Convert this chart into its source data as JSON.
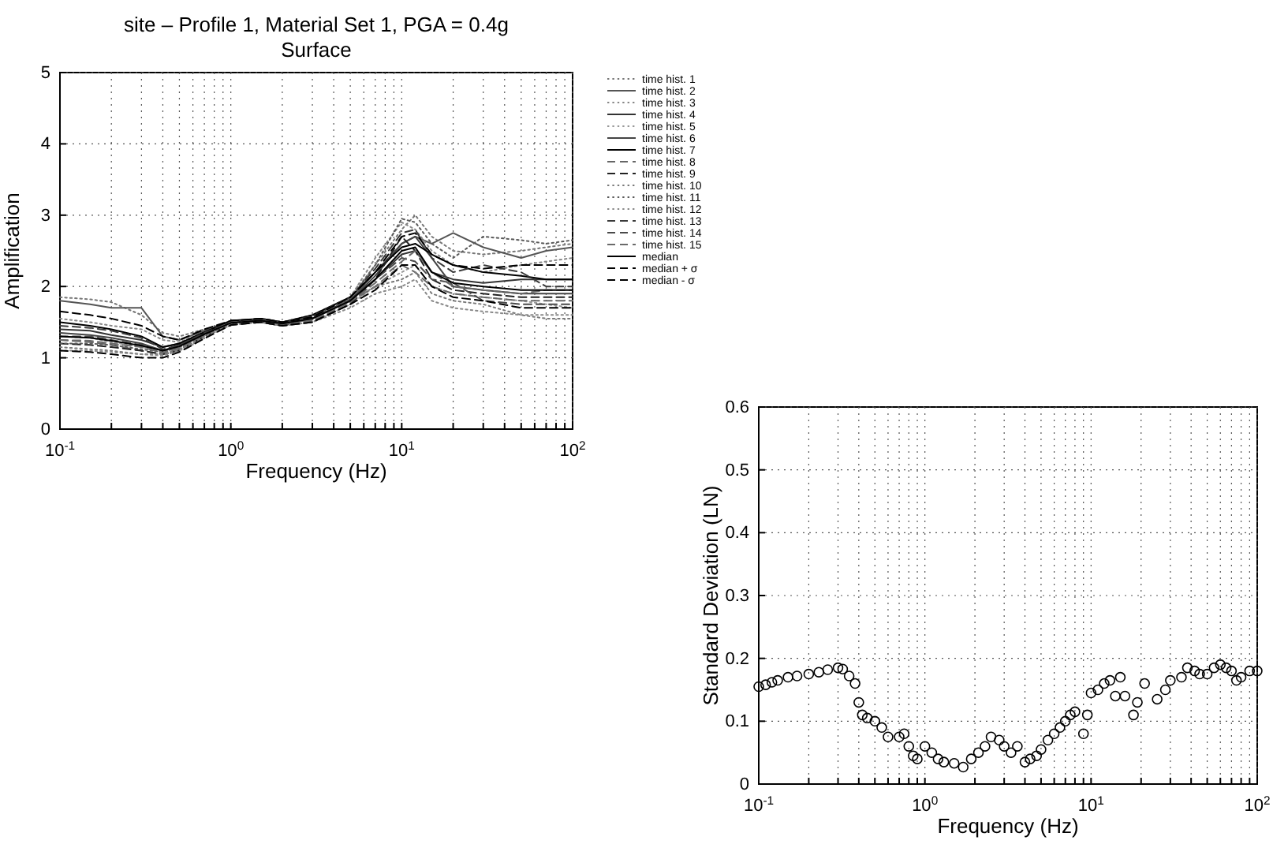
{
  "chart_data": [
    {
      "type": "line",
      "title": "site – Profile 1, Material Set 1, PGA = 0.4g",
      "subtitle": "Surface",
      "xlabel": "Frequency (Hz)",
      "ylabel": "Amplification",
      "x": [
        0.1,
        0.15,
        0.2,
        0.3,
        0.4,
        0.5,
        0.7,
        1,
        1.5,
        2,
        3,
        5,
        7,
        10,
        12,
        15,
        20,
        30,
        50,
        70,
        100
      ],
      "xlim": [
        0.1,
        100
      ],
      "xticks": [
        {
          "value": 0.1,
          "label": "10$^{-1}$"
        },
        {
          "value": 0.2,
          "label": null
        },
        {
          "value": 0.3,
          "label": null
        },
        {
          "value": 0.4,
          "label": null
        },
        {
          "value": 0.5,
          "label": null
        },
        {
          "value": 0.6,
          "label": null
        },
        {
          "value": 0.7,
          "label": null
        },
        {
          "value": 0.8,
          "label": null
        },
        {
          "value": 0.9,
          "label": null
        },
        {
          "value": 1,
          "label": "10$^{0}$"
        },
        {
          "value": 2,
          "label": null
        },
        {
          "value": 3,
          "label": null
        },
        {
          "value": 4,
          "label": null
        },
        {
          "value": 5,
          "label": null
        },
        {
          "value": 6,
          "label": null
        },
        {
          "value": 7,
          "label": null
        },
        {
          "value": 8,
          "label": null
        },
        {
          "value": 9,
          "label": null
        },
        {
          "value": 10,
          "label": "10$^{1}$"
        },
        {
          "value": 20,
          "label": null
        },
        {
          "value": 30,
          "label": null
        },
        {
          "value": 40,
          "label": null
        },
        {
          "value": 50,
          "label": null
        },
        {
          "value": 60,
          "label": null
        },
        {
          "value": 70,
          "label": null
        },
        {
          "value": 80,
          "label": null
        },
        {
          "value": 90,
          "label": null
        },
        {
          "value": 100,
          "label": "10$^{2}$"
        }
      ],
      "ylim": [
        0,
        5
      ],
      "yticks": [
        0,
        1,
        2,
        3,
        4,
        5
      ],
      "grid": true,
      "log": "x",
      "legend": "right",
      "series": [
        {
          "name": "time hist. 1",
          "color": "#777777",
          "line_style": "dotted",
          "values": [
            1.85,
            1.82,
            1.78,
            1.6,
            1.35,
            1.3,
            1.4,
            1.5,
            1.55,
            1.5,
            1.6,
            1.85,
            2.3,
            2.8,
            3.0,
            2.7,
            2.5,
            2.45,
            2.5,
            2.55,
            2.6
          ]
        },
        {
          "name": "time hist. 2",
          "color": "#555555",
          "line_style": "solid",
          "values": [
            1.8,
            1.75,
            1.7,
            1.7,
            1.3,
            1.25,
            1.38,
            1.52,
            1.5,
            1.45,
            1.55,
            1.8,
            2.2,
            2.6,
            2.7,
            2.6,
            2.75,
            2.55,
            2.4,
            2.5,
            2.55
          ]
        },
        {
          "name": "time hist. 3",
          "color": "#888888",
          "line_style": "dotted",
          "values": [
            1.55,
            1.5,
            1.45,
            1.4,
            1.25,
            1.22,
            1.36,
            1.5,
            1.55,
            1.5,
            1.58,
            1.85,
            2.4,
            2.9,
            2.8,
            2.5,
            2.3,
            2.2,
            2.3,
            2.35,
            2.4
          ]
        },
        {
          "name": "time hist. 4",
          "color": "#333333",
          "line_style": "solid",
          "values": [
            1.4,
            1.38,
            1.32,
            1.25,
            1.15,
            1.2,
            1.35,
            1.5,
            1.52,
            1.48,
            1.55,
            1.82,
            2.1,
            2.45,
            2.5,
            2.2,
            2.1,
            2.05,
            2.1,
            2.1,
            2.1
          ]
        },
        {
          "name": "time hist. 5",
          "color": "#999999",
          "line_style": "dotted",
          "values": [
            1.3,
            1.28,
            1.22,
            1.15,
            1.08,
            1.15,
            1.33,
            1.48,
            1.5,
            1.45,
            1.5,
            1.75,
            2.0,
            2.2,
            2.3,
            2.0,
            1.9,
            1.85,
            1.8,
            1.75,
            1.7
          ]
        },
        {
          "name": "time hist. 6",
          "color": "#444444",
          "line_style": "solid",
          "values": [
            1.35,
            1.32,
            1.28,
            1.2,
            1.1,
            1.18,
            1.34,
            1.5,
            1.55,
            1.5,
            1.55,
            1.8,
            2.15,
            2.6,
            2.7,
            2.4,
            2.0,
            1.95,
            1.9,
            1.9,
            1.9
          ]
        },
        {
          "name": "time hist. 7",
          "color": "#000000",
          "line_style": "solid",
          "values": [
            1.5,
            1.45,
            1.4,
            1.3,
            1.15,
            1.2,
            1.36,
            1.52,
            1.55,
            1.5,
            1.6,
            1.85,
            2.2,
            2.55,
            2.6,
            2.45,
            2.3,
            2.2,
            2.15,
            2.1,
            2.1
          ]
        },
        {
          "name": "time hist. 8",
          "color": "#666666",
          "line_style": "dashed",
          "values": [
            1.25,
            1.22,
            1.18,
            1.1,
            1.05,
            1.12,
            1.3,
            1.47,
            1.5,
            1.45,
            1.52,
            1.78,
            2.0,
            2.3,
            2.2,
            2.0,
            1.9,
            1.85,
            1.8,
            1.8,
            1.8
          ]
        },
        {
          "name": "time hist. 9",
          "color": "#222222",
          "line_style": "dashed",
          "values": [
            1.2,
            1.18,
            1.15,
            1.1,
            1.05,
            1.1,
            1.3,
            1.46,
            1.5,
            1.45,
            1.5,
            1.75,
            2.1,
            2.7,
            2.5,
            2.1,
            1.95,
            1.9,
            1.85,
            1.85,
            1.85
          ]
        },
        {
          "name": "time hist. 10",
          "color": "#7a7a7a",
          "line_style": "dotted",
          "values": [
            1.15,
            1.12,
            1.1,
            1.05,
            1.05,
            1.12,
            1.3,
            1.48,
            1.52,
            1.47,
            1.55,
            1.8,
            2.0,
            2.1,
            2.2,
            1.9,
            1.8,
            1.75,
            1.6,
            1.55,
            1.55
          ]
        },
        {
          "name": "time hist. 11",
          "color": "#5a5a5a",
          "line_style": "dotted",
          "values": [
            1.2,
            1.2,
            1.18,
            1.12,
            1.08,
            1.15,
            1.32,
            1.5,
            1.5,
            1.48,
            1.57,
            1.82,
            2.3,
            2.95,
            2.9,
            2.6,
            2.4,
            2.7,
            2.65,
            2.6,
            2.65
          ]
        },
        {
          "name": "time hist. 12",
          "color": "#8a8a8a",
          "line_style": "dotted",
          "values": [
            1.1,
            1.1,
            1.08,
            1.05,
            1.03,
            1.1,
            1.28,
            1.46,
            1.5,
            1.45,
            1.5,
            1.7,
            1.9,
            2.0,
            2.1,
            1.8,
            1.7,
            1.65,
            1.6,
            1.6,
            1.6
          ]
        },
        {
          "name": "time hist. 13",
          "color": "#3a3a3a",
          "line_style": "dashed",
          "values": [
            1.45,
            1.42,
            1.38,
            1.28,
            1.12,
            1.18,
            1.35,
            1.5,
            1.55,
            1.5,
            1.58,
            1.85,
            2.25,
            2.75,
            2.8,
            2.4,
            2.2,
            2.3,
            2.2,
            2.0,
            2.0
          ]
        },
        {
          "name": "time hist. 14",
          "color": "#4a4a4a",
          "line_style": "dashed",
          "values": [
            1.3,
            1.3,
            1.25,
            1.18,
            1.1,
            1.16,
            1.33,
            1.49,
            1.53,
            1.48,
            1.55,
            1.8,
            2.1,
            2.4,
            2.35,
            2.1,
            2.05,
            1.8,
            1.75,
            1.75,
            1.75
          ]
        },
        {
          "name": "time hist. 15",
          "color": "#6a6a6a",
          "line_style": "dashed",
          "values": [
            1.25,
            1.24,
            1.2,
            1.15,
            1.07,
            1.14,
            1.32,
            1.5,
            1.52,
            1.47,
            1.53,
            1.78,
            2.05,
            2.35,
            2.5,
            2.2,
            2.0,
            1.95,
            1.9,
            1.95,
            1.95
          ]
        },
        {
          "name": "median",
          "color": "#000000",
          "line_style": "solid",
          "values": [
            1.3,
            1.28,
            1.24,
            1.17,
            1.1,
            1.16,
            1.33,
            1.49,
            1.52,
            1.48,
            1.55,
            1.8,
            2.1,
            2.5,
            2.55,
            2.2,
            2.05,
            2.0,
            1.95,
            1.95,
            1.95
          ]
        },
        {
          "name": "median + σ",
          "color": "#000000",
          "line_style": "dashed",
          "values": [
            1.65,
            1.6,
            1.55,
            1.45,
            1.3,
            1.25,
            1.4,
            1.52,
            1.55,
            1.5,
            1.57,
            1.85,
            2.2,
            2.7,
            2.75,
            2.45,
            2.3,
            2.25,
            2.3,
            2.3,
            2.3
          ]
        },
        {
          "name": "median - σ",
          "color": "#000000",
          "line_style": "dashed",
          "values": [
            1.1,
            1.08,
            1.05,
            1.0,
            1.0,
            1.08,
            1.27,
            1.46,
            1.5,
            1.45,
            1.5,
            1.75,
            1.95,
            2.3,
            2.3,
            2.0,
            1.85,
            1.8,
            1.7,
            1.7,
            1.7
          ]
        }
      ]
    },
    {
      "type": "scatter",
      "xlabel": "Frequency (Hz)",
      "ylabel": "Standard Deviation (LN)",
      "marker": "circle",
      "grid": true,
      "log": "x",
      "xlim": [
        0.1,
        100
      ],
      "xticks": [
        {
          "value": 0.1,
          "label": "10$^{-1}$"
        },
        {
          "value": 0.2,
          "label": null
        },
        {
          "value": 0.3,
          "label": null
        },
        {
          "value": 0.4,
          "label": null
        },
        {
          "value": 0.5,
          "label": null
        },
        {
          "value": 0.6,
          "label": null
        },
        {
          "value": 0.7,
          "label": null
        },
        {
          "value": 0.8,
          "label": null
        },
        {
          "value": 0.9,
          "label": null
        },
        {
          "value": 1,
          "label": "10$^{0}$"
        },
        {
          "value": 2,
          "label": null
        },
        {
          "value": 3,
          "label": null
        },
        {
          "value": 4,
          "label": null
        },
        {
          "value": 5,
          "label": null
        },
        {
          "value": 6,
          "label": null
        },
        {
          "value": 7,
          "label": null
        },
        {
          "value": 8,
          "label": null
        },
        {
          "value": 9,
          "label": null
        },
        {
          "value": 10,
          "label": "10$^{1}$"
        },
        {
          "value": 20,
          "label": null
        },
        {
          "value": 30,
          "label": null
        },
        {
          "value": 40,
          "label": null
        },
        {
          "value": 50,
          "label": null
        },
        {
          "value": 60,
          "label": null
        },
        {
          "value": 70,
          "label": null
        },
        {
          "value": 80,
          "label": null
        },
        {
          "value": 90,
          "label": null
        },
        {
          "value": 100,
          "label": "10$^{2}$"
        }
      ],
      "ylim": [
        0,
        0.6
      ],
      "yticks": [
        0,
        0.1,
        0.2,
        0.3,
        0.4,
        0.5,
        0.6
      ],
      "x": [
        0.1,
        0.11,
        0.12,
        0.13,
        0.15,
        0.17,
        0.2,
        0.23,
        0.26,
        0.3,
        0.32,
        0.35,
        0.38,
        0.4,
        0.42,
        0.45,
        0.5,
        0.55,
        0.6,
        0.7,
        0.75,
        0.8,
        0.85,
        0.9,
        1.0,
        1.1,
        1.2,
        1.3,
        1.5,
        1.7,
        1.9,
        2.1,
        2.3,
        2.5,
        2.8,
        3.0,
        3.3,
        3.6,
        4.0,
        4.3,
        4.7,
        5,
        5.5,
        6,
        6.5,
        7,
        7.5,
        8,
        9,
        9.5,
        10,
        11,
        12,
        13,
        14,
        15,
        16,
        18,
        19,
        21,
        25,
        28,
        30,
        35,
        38,
        42,
        45,
        50,
        55,
        60,
        65,
        70,
        75,
        80,
        90,
        100
      ],
      "series": [
        {
          "color": "#000000",
          "values": [
            0.155,
            0.158,
            0.162,
            0.165,
            0.17,
            0.172,
            0.175,
            0.178,
            0.182,
            0.185,
            0.183,
            0.172,
            0.16,
            0.13,
            0.11,
            0.105,
            0.1,
            0.09,
            0.075,
            0.075,
            0.08,
            0.06,
            0.045,
            0.04,
            0.06,
            0.05,
            0.04,
            0.035,
            0.033,
            0.027,
            0.04,
            0.05,
            0.06,
            0.075,
            0.07,
            0.06,
            0.05,
            0.06,
            0.035,
            0.04,
            0.045,
            0.055,
            0.07,
            0.08,
            0.09,
            0.1,
            0.11,
            0.115,
            0.08,
            0.11,
            0.145,
            0.15,
            0.16,
            0.165,
            0.14,
            0.17,
            0.14,
            0.11,
            0.13,
            0.16,
            0.135,
            0.15,
            0.165,
            0.17,
            0.185,
            0.18,
            0.175,
            0.175,
            0.185,
            0.19,
            0.185,
            0.18,
            0.165,
            0.17,
            0.18,
            0.18
          ]
        }
      ]
    }
  ]
}
